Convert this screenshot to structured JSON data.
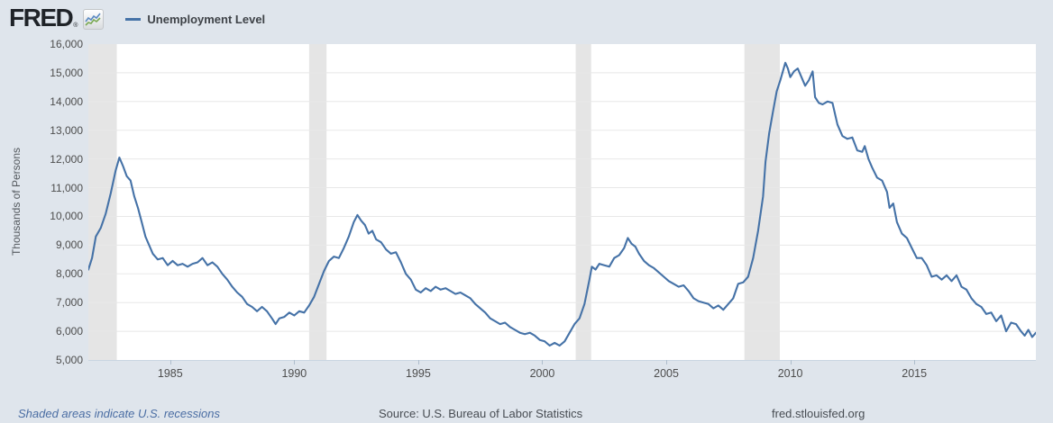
{
  "header": {
    "logo_text": "FRED",
    "registered_mark": "®",
    "legend_label": "Unemployment Level"
  },
  "footer": {
    "recession_note": "Shaded areas indicate U.S. recessions",
    "source": "Source: U.S. Bureau of Labor Statistics",
    "site": "fred.stlouisfed.org"
  },
  "colors": {
    "background": "#dfe5ec",
    "plot_background": "#ffffff",
    "line": "#4572a7",
    "recession_band": "#e5e5e5",
    "gridline": "#e8e8e8",
    "axis_text": "#4d4d4d",
    "axis_line": "#c9d5e1",
    "tick_mark": "#aebdcc",
    "link_blue": "#4a6da3"
  },
  "chart_data": {
    "type": "line",
    "title": "Unemployment Level",
    "ylabel": "Thousands of Persons",
    "xlabel": "",
    "legend_position": "top-left",
    "grid": "horizontal",
    "x_range": [
      1981.7,
      2019.9
    ],
    "y_range": [
      5000,
      16000
    ],
    "y_ticks": [
      5000,
      6000,
      7000,
      8000,
      9000,
      10000,
      11000,
      12000,
      13000,
      14000,
      15000,
      16000
    ],
    "x_ticks": [
      1985,
      1990,
      1995,
      2000,
      2005,
      2010,
      2015
    ],
    "recessions": [
      [
        1981.7,
        1982.85
      ],
      [
        1990.6,
        1991.3
      ],
      [
        2001.35,
        2001.97
      ],
      [
        2008.15,
        2009.58
      ]
    ],
    "series": [
      {
        "name": "Unemployment Level",
        "units": "Thousands of Persons",
        "color": "#4572a7",
        "points": [
          [
            1981.7,
            8150
          ],
          [
            1981.85,
            8550
          ],
          [
            1982.0,
            9300
          ],
          [
            1982.2,
            9600
          ],
          [
            1982.4,
            10100
          ],
          [
            1982.6,
            10800
          ],
          [
            1982.8,
            11600
          ],
          [
            1982.95,
            12050
          ],
          [
            1983.1,
            11750
          ],
          [
            1983.25,
            11400
          ],
          [
            1983.4,
            11250
          ],
          [
            1983.55,
            10700
          ],
          [
            1983.7,
            10300
          ],
          [
            1983.85,
            9800
          ],
          [
            1984.0,
            9300
          ],
          [
            1984.15,
            9000
          ],
          [
            1984.3,
            8700
          ],
          [
            1984.5,
            8500
          ],
          [
            1984.7,
            8550
          ],
          [
            1984.9,
            8300
          ],
          [
            1985.1,
            8450
          ],
          [
            1985.3,
            8300
          ],
          [
            1985.5,
            8350
          ],
          [
            1985.7,
            8250
          ],
          [
            1985.9,
            8350
          ],
          [
            1986.1,
            8400
          ],
          [
            1986.3,
            8550
          ],
          [
            1986.5,
            8300
          ],
          [
            1986.7,
            8400
          ],
          [
            1986.9,
            8250
          ],
          [
            1987.1,
            8000
          ],
          [
            1987.3,
            7800
          ],
          [
            1987.5,
            7550
          ],
          [
            1987.7,
            7350
          ],
          [
            1987.9,
            7200
          ],
          [
            1988.1,
            6950
          ],
          [
            1988.3,
            6850
          ],
          [
            1988.5,
            6700
          ],
          [
            1988.7,
            6850
          ],
          [
            1988.9,
            6700
          ],
          [
            1989.1,
            6450
          ],
          [
            1989.25,
            6250
          ],
          [
            1989.4,
            6450
          ],
          [
            1989.6,
            6500
          ],
          [
            1989.8,
            6650
          ],
          [
            1990.0,
            6550
          ],
          [
            1990.2,
            6700
          ],
          [
            1990.4,
            6650
          ],
          [
            1990.6,
            6900
          ],
          [
            1990.8,
            7200
          ],
          [
            1991.0,
            7650
          ],
          [
            1991.2,
            8100
          ],
          [
            1991.4,
            8450
          ],
          [
            1991.6,
            8600
          ],
          [
            1991.8,
            8550
          ],
          [
            1992.0,
            8900
          ],
          [
            1992.2,
            9300
          ],
          [
            1992.4,
            9800
          ],
          [
            1992.55,
            10050
          ],
          [
            1992.7,
            9850
          ],
          [
            1992.85,
            9700
          ],
          [
            1993.0,
            9400
          ],
          [
            1993.15,
            9500
          ],
          [
            1993.3,
            9200
          ],
          [
            1993.5,
            9100
          ],
          [
            1993.7,
            8850
          ],
          [
            1993.9,
            8700
          ],
          [
            1994.1,
            8750
          ],
          [
            1994.3,
            8400
          ],
          [
            1994.5,
            8000
          ],
          [
            1994.7,
            7800
          ],
          [
            1994.9,
            7450
          ],
          [
            1995.1,
            7350
          ],
          [
            1995.3,
            7500
          ],
          [
            1995.5,
            7400
          ],
          [
            1995.7,
            7550
          ],
          [
            1995.9,
            7450
          ],
          [
            1996.1,
            7500
          ],
          [
            1996.3,
            7400
          ],
          [
            1996.5,
            7300
          ],
          [
            1996.7,
            7350
          ],
          [
            1996.9,
            7250
          ],
          [
            1997.1,
            7150
          ],
          [
            1997.3,
            6950
          ],
          [
            1997.5,
            6800
          ],
          [
            1997.7,
            6650
          ],
          [
            1997.9,
            6450
          ],
          [
            1998.1,
            6350
          ],
          [
            1998.3,
            6250
          ],
          [
            1998.5,
            6300
          ],
          [
            1998.7,
            6150
          ],
          [
            1998.9,
            6050
          ],
          [
            1999.1,
            5950
          ],
          [
            1999.3,
            5900
          ],
          [
            1999.5,
            5950
          ],
          [
            1999.7,
            5850
          ],
          [
            1999.9,
            5700
          ],
          [
            2000.1,
            5650
          ],
          [
            2000.3,
            5500
          ],
          [
            2000.5,
            5600
          ],
          [
            2000.7,
            5500
          ],
          [
            2000.9,
            5650
          ],
          [
            2001.1,
            5950
          ],
          [
            2001.3,
            6250
          ],
          [
            2001.5,
            6450
          ],
          [
            2001.7,
            6950
          ],
          [
            2001.9,
            7800
          ],
          [
            2002.0,
            8250
          ],
          [
            2002.15,
            8150
          ],
          [
            2002.3,
            8350
          ],
          [
            2002.5,
            8300
          ],
          [
            2002.7,
            8250
          ],
          [
            2002.9,
            8550
          ],
          [
            2003.1,
            8650
          ],
          [
            2003.3,
            8900
          ],
          [
            2003.45,
            9250
          ],
          [
            2003.6,
            9050
          ],
          [
            2003.75,
            8950
          ],
          [
            2003.9,
            8700
          ],
          [
            2004.1,
            8450
          ],
          [
            2004.3,
            8300
          ],
          [
            2004.5,
            8200
          ],
          [
            2004.7,
            8050
          ],
          [
            2004.9,
            7900
          ],
          [
            2005.1,
            7750
          ],
          [
            2005.3,
            7650
          ],
          [
            2005.5,
            7550
          ],
          [
            2005.7,
            7600
          ],
          [
            2005.9,
            7400
          ],
          [
            2006.1,
            7150
          ],
          [
            2006.3,
            7050
          ],
          [
            2006.5,
            7000
          ],
          [
            2006.7,
            6950
          ],
          [
            2006.9,
            6800
          ],
          [
            2007.1,
            6900
          ],
          [
            2007.3,
            6750
          ],
          [
            2007.5,
            6950
          ],
          [
            2007.7,
            7150
          ],
          [
            2007.9,
            7650
          ],
          [
            2008.1,
            7700
          ],
          [
            2008.3,
            7900
          ],
          [
            2008.5,
            8550
          ],
          [
            2008.7,
            9500
          ],
          [
            2008.9,
            10700
          ],
          [
            2009.0,
            11900
          ],
          [
            2009.15,
            12900
          ],
          [
            2009.3,
            13650
          ],
          [
            2009.45,
            14350
          ],
          [
            2009.6,
            14750
          ],
          [
            2009.8,
            15350
          ],
          [
            2009.9,
            15150
          ],
          [
            2010.0,
            14850
          ],
          [
            2010.15,
            15050
          ],
          [
            2010.3,
            15150
          ],
          [
            2010.45,
            14850
          ],
          [
            2010.6,
            14550
          ],
          [
            2010.75,
            14750
          ],
          [
            2010.9,
            15050
          ],
          [
            2011.0,
            14150
          ],
          [
            2011.15,
            13950
          ],
          [
            2011.3,
            13900
          ],
          [
            2011.5,
            14000
          ],
          [
            2011.7,
            13950
          ],
          [
            2011.9,
            13200
          ],
          [
            2012.1,
            12800
          ],
          [
            2012.3,
            12700
          ],
          [
            2012.5,
            12750
          ],
          [
            2012.7,
            12300
          ],
          [
            2012.9,
            12250
          ],
          [
            2013.0,
            12450
          ],
          [
            2013.15,
            12000
          ],
          [
            2013.3,
            11700
          ],
          [
            2013.5,
            11350
          ],
          [
            2013.7,
            11250
          ],
          [
            2013.9,
            10850
          ],
          [
            2014.0,
            10300
          ],
          [
            2014.15,
            10450
          ],
          [
            2014.3,
            9800
          ],
          [
            2014.5,
            9400
          ],
          [
            2014.7,
            9250
          ],
          [
            2014.9,
            8900
          ],
          [
            2015.1,
            8550
          ],
          [
            2015.3,
            8550
          ],
          [
            2015.5,
            8300
          ],
          [
            2015.7,
            7900
          ],
          [
            2015.9,
            7950
          ],
          [
            2016.1,
            7800
          ],
          [
            2016.3,
            7950
          ],
          [
            2016.5,
            7750
          ],
          [
            2016.7,
            7950
          ],
          [
            2016.9,
            7550
          ],
          [
            2017.1,
            7450
          ],
          [
            2017.3,
            7150
          ],
          [
            2017.5,
            6950
          ],
          [
            2017.7,
            6850
          ],
          [
            2017.9,
            6600
          ],
          [
            2018.1,
            6650
          ],
          [
            2018.3,
            6350
          ],
          [
            2018.5,
            6550
          ],
          [
            2018.7,
            6000
          ],
          [
            2018.9,
            6300
          ],
          [
            2019.1,
            6250
          ],
          [
            2019.3,
            6000
          ],
          [
            2019.45,
            5850
          ],
          [
            2019.6,
            6050
          ],
          [
            2019.75,
            5800
          ],
          [
            2019.9,
            5950
          ]
        ]
      }
    ]
  }
}
